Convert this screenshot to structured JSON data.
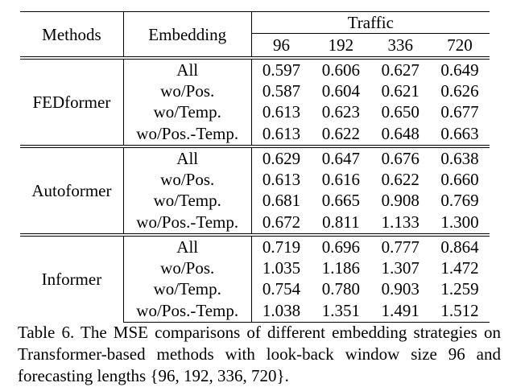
{
  "header": {
    "methods_label": "Methods",
    "embedding_label": "Embedding",
    "dataset": "Traffic",
    "horizons": [
      "96",
      "192",
      "336",
      "720"
    ]
  },
  "groups": [
    {
      "method": "FEDformer",
      "rows": [
        {
          "embedding": "All",
          "values": [
            "0.597",
            "0.606",
            "0.627",
            "0.649"
          ],
          "bold": [
            false,
            false,
            false,
            false
          ]
        },
        {
          "embedding": "wo/Pos.",
          "values": [
            "0.587",
            "0.604",
            "0.621",
            "0.626"
          ],
          "bold": [
            true,
            true,
            true,
            true
          ]
        },
        {
          "embedding": "wo/Temp.",
          "values": [
            "0.613",
            "0.623",
            "0.650",
            "0.677"
          ],
          "bold": [
            false,
            false,
            false,
            false
          ]
        },
        {
          "embedding": "wo/Pos.-Temp.",
          "values": [
            "0.613",
            "0.622",
            "0.648",
            "0.663"
          ],
          "bold": [
            false,
            false,
            false,
            false
          ]
        }
      ]
    },
    {
      "method": "Autoformer",
      "rows": [
        {
          "embedding": "All",
          "values": [
            "0.629",
            "0.647",
            "0.676",
            "0.638"
          ],
          "bold": [
            false,
            false,
            false,
            true
          ]
        },
        {
          "embedding": "wo/Pos.",
          "values": [
            "0.613",
            "0.616",
            "0.622",
            "0.660"
          ],
          "bold": [
            true,
            true,
            true,
            false
          ]
        },
        {
          "embedding": "wo/Temp.",
          "values": [
            "0.681",
            "0.665",
            "0.908",
            "0.769"
          ],
          "bold": [
            false,
            false,
            false,
            false
          ]
        },
        {
          "embedding": "wo/Pos.-Temp.",
          "values": [
            "0.672",
            "0.811",
            "1.133",
            "1.300"
          ],
          "bold": [
            false,
            false,
            false,
            false
          ]
        }
      ]
    },
    {
      "method": "Informer",
      "rows": [
        {
          "embedding": "All",
          "values": [
            "0.719",
            "0.696",
            "0.777",
            "0.864"
          ],
          "bold": [
            true,
            true,
            true,
            true
          ]
        },
        {
          "embedding": "wo/Pos.",
          "values": [
            "1.035",
            "1.186",
            "1.307",
            "1.472"
          ],
          "bold": [
            false,
            false,
            false,
            false
          ]
        },
        {
          "embedding": "wo/Temp.",
          "values": [
            "0.754",
            "0.780",
            "0.903",
            "1.259"
          ],
          "bold": [
            false,
            false,
            false,
            false
          ]
        },
        {
          "embedding": "wo/Pos.-Temp.",
          "values": [
            "1.038",
            "1.351",
            "1.491",
            "1.512"
          ],
          "bold": [
            false,
            false,
            false,
            false
          ]
        }
      ]
    }
  ],
  "caption": "Table 6. The MSE comparisons of different embedding strategies on Transformer-based methods with look-back window size 96 and forecasting lengths {96, 192, 336, 720}."
}
